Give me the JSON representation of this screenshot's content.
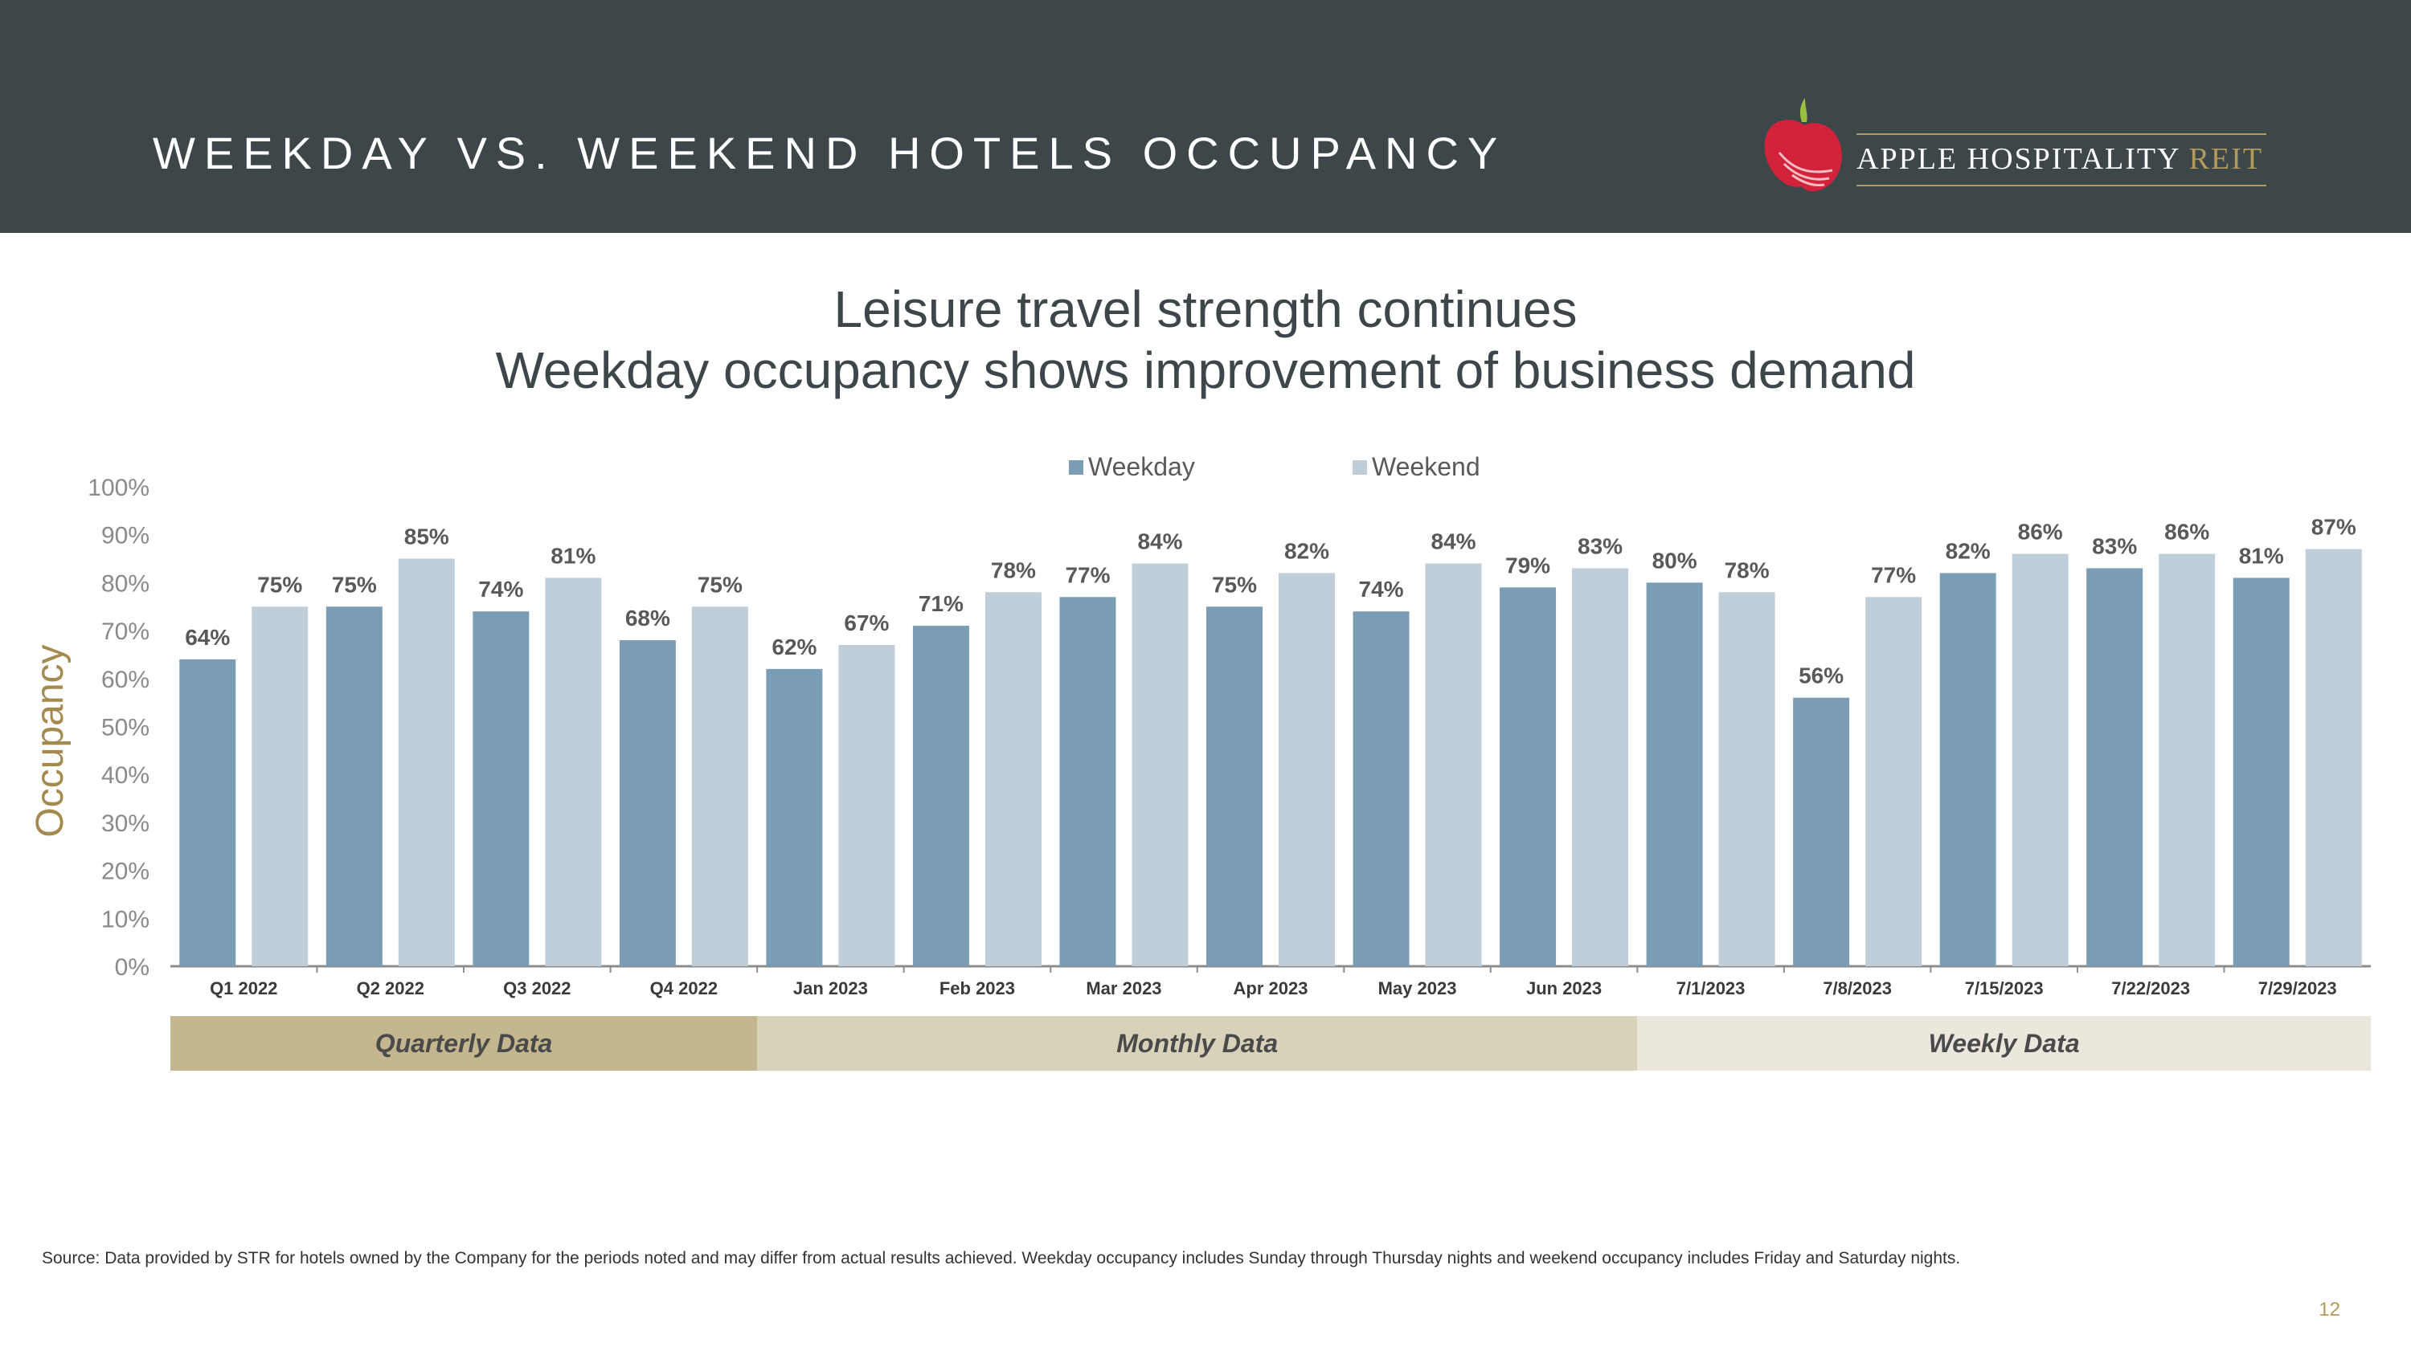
{
  "header": {
    "title": "WEEKDAY VS. WEEKEND HOTELS OCCUPANCY",
    "logo_main": "APPLE HOSPITALITY",
    "logo_accent": "REIT"
  },
  "subtitle": {
    "line1": "Leisure travel strength continues",
    "line2": "Weekday occupancy shows improvement of business demand"
  },
  "colors": {
    "header_bg": "#3d4649",
    "weekday": "#7a9db5",
    "weekend": "#bfced9",
    "accent_gold": "#b39a5a",
    "quarterly_band": "#c4b68f",
    "monthly_band": "#d9d2ba",
    "weekly_band": "#ebe7dc"
  },
  "chart_data": {
    "type": "bar",
    "ylabel": "Occupancy",
    "ylim": [
      0,
      100
    ],
    "yticks": [
      "0%",
      "10%",
      "20%",
      "30%",
      "40%",
      "50%",
      "60%",
      "70%",
      "80%",
      "90%",
      "100%"
    ],
    "legend_position": "top-center",
    "grid": false,
    "categories": [
      "Q1 2022",
      "Q2 2022",
      "Q3 2022",
      "Q4 2022",
      "Jan 2023",
      "Feb 2023",
      "Mar 2023",
      "Apr 2023",
      "May 2023",
      "Jun 2023",
      "7/1/2023",
      "7/8/2023",
      "7/15/2023",
      "7/22/2023",
      "7/29/2023"
    ],
    "series": [
      {
        "name": "Weekday",
        "values": [
          64,
          75,
          74,
          68,
          62,
          71,
          77,
          75,
          74,
          79,
          80,
          56,
          82,
          83,
          81
        ],
        "labels": [
          "64%",
          "75%",
          "74%",
          "68%",
          "62%",
          "71%",
          "77%",
          "75%",
          "74%",
          "79%",
          "80%",
          "56%",
          "82%",
          "83%",
          "81%"
        ]
      },
      {
        "name": "Weekend",
        "values": [
          75,
          85,
          81,
          75,
          67,
          78,
          84,
          82,
          84,
          83,
          78,
          77,
          86,
          86,
          87
        ],
        "labels": [
          "75%",
          "85%",
          "81%",
          "75%",
          "67%",
          "78%",
          "84%",
          "82%",
          "84%",
          "83%",
          "78%",
          "77%",
          "86%",
          "86%",
          "87%"
        ]
      }
    ],
    "period_groups": [
      {
        "label": "Quarterly Data",
        "start": 0,
        "end": 3
      },
      {
        "label": "Monthly Data",
        "start": 4,
        "end": 9
      },
      {
        "label": "Weekly Data",
        "start": 10,
        "end": 14
      }
    ]
  },
  "footer": {
    "source": "Source:  Data provided by STR for hotels owned by the Company for the periods noted and may differ from actual results achieved. Weekday occupancy includes Sunday through Thursday nights and weekend occupancy includes Friday and Saturday nights.",
    "page_number": "12"
  }
}
